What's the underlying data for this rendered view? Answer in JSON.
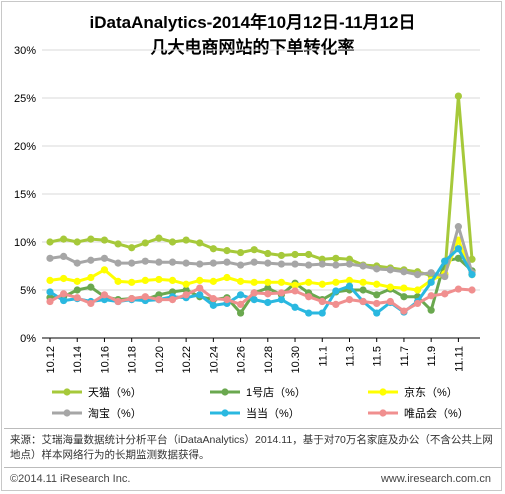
{
  "chart_data": {
    "type": "line",
    "title": "iDataAnalytics-2014年10月12日-11月12日",
    "subtitle": "几大电商网站的下单转化率",
    "ylim": [
      0,
      30
    ],
    "y_ticks": [
      "0%",
      "5%",
      "10%",
      "15%",
      "20%",
      "25%",
      "30%"
    ],
    "x_tick_labels": [
      "10.12",
      "10.14",
      "10.16",
      "10.18",
      "10.20",
      "10.22",
      "10.24",
      "10.26",
      "10.28",
      "10.30",
      "11.1",
      "11.3",
      "11.5",
      "11.7",
      "11.9",
      "11.11"
    ],
    "x": [
      "10.12",
      "10.13",
      "10.14",
      "10.15",
      "10.16",
      "10.17",
      "10.18",
      "10.19",
      "10.20",
      "10.21",
      "10.22",
      "10.23",
      "10.24",
      "10.25",
      "10.26",
      "10.27",
      "10.28",
      "10.29",
      "10.30",
      "10.31",
      "11.1",
      "11.2",
      "11.3",
      "11.4",
      "11.5",
      "11.6",
      "11.7",
      "11.8",
      "11.9",
      "11.10",
      "11.11",
      "11.12"
    ],
    "grid": true,
    "legend_position": "bottom",
    "series": [
      {
        "name": "天猫（%）",
        "color": "#a6c93a",
        "values": [
          10.0,
          10.3,
          10.0,
          10.3,
          10.2,
          9.8,
          9.4,
          9.9,
          10.4,
          10.0,
          10.2,
          9.9,
          9.3,
          9.1,
          8.9,
          9.2,
          8.8,
          8.6,
          8.7,
          8.7,
          8.2,
          8.3,
          8.2,
          7.6,
          7.5,
          7.3,
          7.1,
          6.9,
          6.5,
          6.6,
          25.2,
          8.2
        ]
      },
      {
        "name": "1号店（%）",
        "color": "#6aa84f",
        "values": [
          4.2,
          4.3,
          5.0,
          5.3,
          4.3,
          4.0,
          4.1,
          4.0,
          4.5,
          4.8,
          5.0,
          4.3,
          4.0,
          4.2,
          2.6,
          4.7,
          5.2,
          4.5,
          5.7,
          4.7,
          4.0,
          4.8,
          5.0,
          5.0,
          4.5,
          5.1,
          4.3,
          4.3,
          2.9,
          8.0,
          8.3,
          7.0
        ]
      },
      {
        "name": "京东（%）",
        "color": "#ffff00",
        "values": [
          6.0,
          6.2,
          5.9,
          6.3,
          7.1,
          5.9,
          5.8,
          6.0,
          6.1,
          6.0,
          5.6,
          6.0,
          5.9,
          6.3,
          5.9,
          5.8,
          5.8,
          5.8,
          5.5,
          5.8,
          5.6,
          5.8,
          6.0,
          5.8,
          5.6,
          5.3,
          5.2,
          5.0,
          6.0,
          6.7,
          10.2,
          6.6
        ]
      },
      {
        "name": "淘宝（%）",
        "color": "#a6a6a6",
        "values": [
          8.3,
          8.5,
          7.8,
          8.1,
          8.3,
          7.8,
          7.8,
          8.0,
          7.9,
          7.9,
          7.8,
          7.7,
          7.8,
          7.9,
          7.6,
          7.9,
          7.8,
          7.7,
          7.7,
          7.6,
          7.7,
          7.6,
          7.7,
          7.5,
          7.2,
          7.1,
          6.9,
          6.6,
          6.8,
          6.4,
          11.6,
          6.8
        ]
      },
      {
        "name": "当当（%）",
        "color": "#2ab8e0",
        "values": [
          4.8,
          3.9,
          4.1,
          3.8,
          4.0,
          3.8,
          4.0,
          3.9,
          4.0,
          4.3,
          4.2,
          4.5,
          3.4,
          3.6,
          4.5,
          4.0,
          3.7,
          4.0,
          3.2,
          2.6,
          2.6,
          4.9,
          5.4,
          3.8,
          2.6,
          3.7,
          2.7,
          3.8,
          5.8,
          8.0,
          9.3,
          6.6
        ]
      },
      {
        "name": "唯品会（%）",
        "color": "#f08f8f",
        "values": [
          3.8,
          4.6,
          4.2,
          3.6,
          4.5,
          3.8,
          4.1,
          4.3,
          4.0,
          4.0,
          4.5,
          5.2,
          4.1,
          4.0,
          3.5,
          4.7,
          4.6,
          4.7,
          4.9,
          4.3,
          3.8,
          3.5,
          4.0,
          3.8,
          3.6,
          3.8,
          2.8,
          3.6,
          4.4,
          4.6,
          5.1,
          5.0
        ]
      }
    ]
  },
  "footer": {
    "source": "来源：艾瑞海量数据统计分析平台（iDataAnalytics）2014.11，基于对70万名家庭及办公（不含公共上网地点）样本网络行为的长期监测数据获得。",
    "copyright": "©2014.11 iResearch Inc.",
    "website": "www.iresearch.com.cn"
  }
}
